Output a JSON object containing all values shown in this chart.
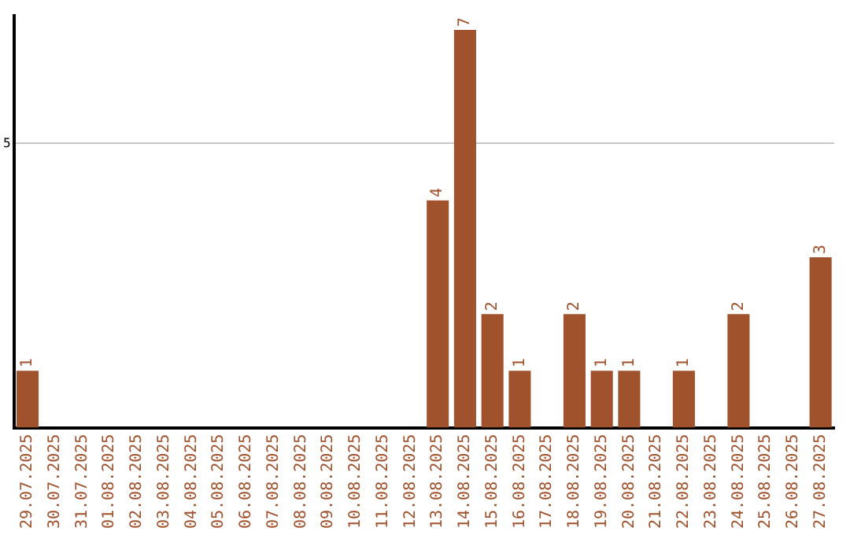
{
  "chart_data": {
    "type": "bar",
    "categories": [
      "29.07.2025",
      "30.07.2025",
      "31.07.2025",
      "01.08.2025",
      "02.08.2025",
      "03.08.2025",
      "04.08.2025",
      "05.08.2025",
      "06.08.2025",
      "07.08.2025",
      "08.08.2025",
      "09.08.2025",
      "10.08.2025",
      "11.08.2025",
      "12.08.2025",
      "13.08.2025",
      "14.08.2025",
      "15.08.2025",
      "16.08.2025",
      "17.08.2025",
      "18.08.2025",
      "19.08.2025",
      "20.08.2025",
      "21.08.2025",
      "22.08.2025",
      "23.08.2025",
      "24.08.2025",
      "25.08.2025",
      "26.08.2025",
      "27.08.2025"
    ],
    "values": [
      1,
      null,
      null,
      null,
      null,
      null,
      null,
      null,
      null,
      null,
      null,
      null,
      null,
      null,
      null,
      4,
      7,
      2,
      1,
      null,
      2,
      1,
      1,
      null,
      1,
      null,
      2,
      null,
      null,
      3
    ],
    "color": "#a0522d",
    "ylim": [
      0,
      7.25
    ],
    "yticks": [
      5
    ],
    "grid": "y",
    "data_labels": true
  }
}
